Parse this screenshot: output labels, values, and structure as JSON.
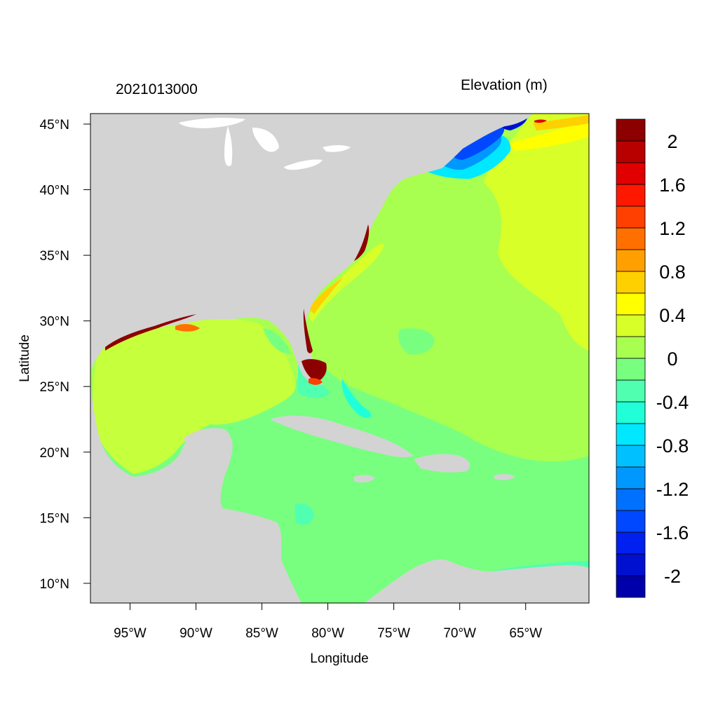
{
  "header": {
    "timestamp": "2021013000",
    "variable_title": "Elevation (m)"
  },
  "axes": {
    "xlabel": "Longitude",
    "ylabel": "Latitude",
    "lon_range": [
      -98.0,
      -60.2
    ],
    "lat_range": [
      8.5,
      45.8
    ],
    "lon_ticks": [
      {
        "value": -95,
        "label": "95°W"
      },
      {
        "value": -90,
        "label": "90°W"
      },
      {
        "value": -85,
        "label": "85°W"
      },
      {
        "value": -80,
        "label": "80°W"
      },
      {
        "value": -75,
        "label": "75°W"
      },
      {
        "value": -70,
        "label": "70°W"
      },
      {
        "value": -65,
        "label": "65°W"
      }
    ],
    "lat_ticks": [
      {
        "value": 45,
        "label": "45°N"
      },
      {
        "value": 40,
        "label": "40°N"
      },
      {
        "value": 35,
        "label": "35°N"
      },
      {
        "value": 30,
        "label": "30°N"
      },
      {
        "value": 25,
        "label": "25°N"
      },
      {
        "value": 20,
        "label": "20°N"
      },
      {
        "value": 15,
        "label": "15°N"
      },
      {
        "value": 10,
        "label": "10°N"
      }
    ]
  },
  "colorbar": {
    "min": -2.2,
    "max": 2.2,
    "step": 0.2,
    "colors": [
      "#0000aa",
      "#0010d0",
      "#0020f0",
      "#0048ff",
      "#0070ff",
      "#0098ff",
      "#00c0ff",
      "#00e8ff",
      "#20ffd8",
      "#50ffb0",
      "#78ff80",
      "#a8ff50",
      "#d8ff28",
      "#ffff00",
      "#ffd000",
      "#ffa000",
      "#ff7000",
      "#ff4000",
      "#ff1800",
      "#e00000",
      "#b80000",
      "#8c0000"
    ],
    "tick_labels": [
      {
        "value": 2.0,
        "label": "2"
      },
      {
        "value": 1.6,
        "label": "1.6"
      },
      {
        "value": 1.2,
        "label": "1.2"
      },
      {
        "value": 0.8,
        "label": "0.8"
      },
      {
        "value": 0.4,
        "label": "0.4"
      },
      {
        "value": 0.0,
        "label": "0"
      },
      {
        "value": -0.4,
        "label": "-0.4"
      },
      {
        "value": -0.8,
        "label": "-0.8"
      },
      {
        "value": -1.2,
        "label": "-1.2"
      },
      {
        "value": -1.6,
        "label": "-1.6"
      },
      {
        "value": -2.0,
        "label": "-2"
      }
    ]
  },
  "colors": {
    "land": "#d3d3d3",
    "water_zero": "#a8ff50",
    "water_neg": "#78ff80"
  }
}
